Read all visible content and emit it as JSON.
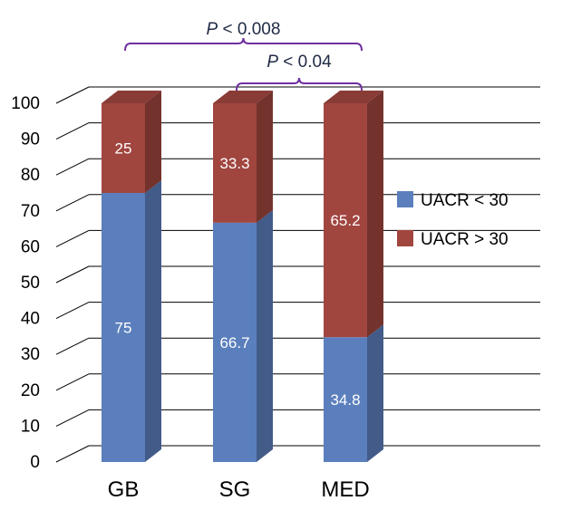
{
  "chart_data": {
    "type": "bar",
    "stacked": true,
    "three_d": true,
    "categories": [
      "GB",
      "SG",
      "MED"
    ],
    "series": [
      {
        "name": "UACR < 30",
        "values": [
          75,
          66.7,
          34.8
        ],
        "labels": [
          "75",
          "66.7",
          "34.8"
        ],
        "color": "#5b7fbd"
      },
      {
        "name": "UACR > 30",
        "values": [
          25,
          33.3,
          65.2
        ],
        "labels": [
          "25",
          "33.3",
          "65.2"
        ],
        "color": "#a1453f"
      }
    ],
    "ylim": [
      0,
      100
    ],
    "yticks": [
      "0",
      "10",
      "20",
      "30",
      "40",
      "50",
      "60",
      "70",
      "80",
      "90",
      "100"
    ],
    "grid": true,
    "legend_position": "right",
    "annotations": [
      {
        "label_prefix": "P",
        "label_rest": " < 0.008",
        "from": "GB",
        "to": "MED"
      },
      {
        "label_prefix": "P",
        "label_rest": " < 0.04",
        "from": "SG",
        "to": "MED"
      }
    ],
    "colors": {
      "bracket": "#7030a0",
      "grid": "#000000",
      "bar_label": "#ffffff"
    }
  }
}
